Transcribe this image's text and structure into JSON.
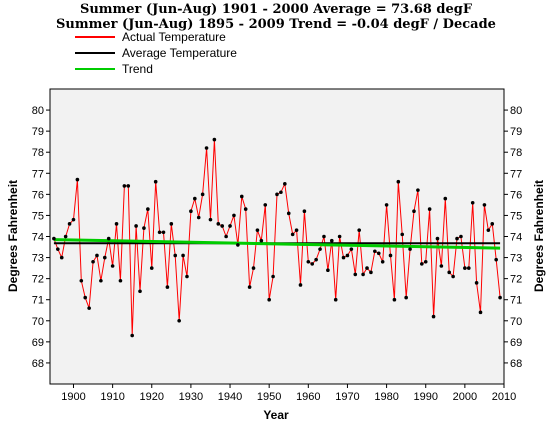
{
  "chart_data": {
    "type": "line",
    "title": "Summer (Jun-Aug) 1901 - 2000 Average = 73.68 degF",
    "subtitle": "Summer (Jun-Aug) 1895 - 2009 Trend = -0.04 degF / Decade",
    "xlabel": "Year",
    "ylabel": "Degrees Fahrenheit",
    "xlim": [
      1894,
      2010
    ],
    "ylim": [
      67,
      81
    ],
    "xticks": [
      1900,
      1910,
      1920,
      1930,
      1940,
      1950,
      1960,
      1970,
      1980,
      1990,
      2000,
      2010
    ],
    "yticks": [
      68,
      69,
      70,
      71,
      72,
      73,
      74,
      75,
      76,
      77,
      78,
      79,
      80
    ],
    "grid": false,
    "legend_position": "top-left",
    "colors": {
      "actual": "#ff0000",
      "average": "#000000",
      "trend": "#00cc00",
      "panel": "#f2f2f2"
    },
    "series": [
      {
        "name": "Actual Temperature",
        "x": [
          1895,
          1896,
          1897,
          1898,
          1899,
          1900,
          1901,
          1902,
          1903,
          1904,
          1905,
          1906,
          1907,
          1908,
          1909,
          1910,
          1911,
          1912,
          1913,
          1914,
          1915,
          1916,
          1917,
          1918,
          1919,
          1920,
          1921,
          1922,
          1923,
          1924,
          1925,
          1926,
          1927,
          1928,
          1929,
          1930,
          1931,
          1932,
          1933,
          1934,
          1935,
          1936,
          1937,
          1938,
          1939,
          1940,
          1941,
          1942,
          1943,
          1944,
          1945,
          1946,
          1947,
          1948,
          1949,
          1950,
          1951,
          1952,
          1953,
          1954,
          1955,
          1956,
          1957,
          1958,
          1959,
          1960,
          1961,
          1962,
          1963,
          1964,
          1965,
          1966,
          1967,
          1968,
          1969,
          1970,
          1971,
          1972,
          1973,
          1974,
          1975,
          1976,
          1977,
          1978,
          1979,
          1980,
          1981,
          1982,
          1983,
          1984,
          1985,
          1986,
          1987,
          1988,
          1989,
          1990,
          1991,
          1992,
          1993,
          1994,
          1995,
          1996,
          1997,
          1998,
          1999,
          2000,
          2001,
          2002,
          2003,
          2004,
          2005,
          2006,
          2007,
          2008,
          2009
        ],
        "values": [
          73.9,
          73.4,
          73.0,
          74.0,
          74.6,
          74.8,
          76.7,
          71.9,
          71.1,
          70.6,
          72.8,
          73.1,
          71.9,
          73.0,
          73.9,
          72.6,
          74.6,
          71.9,
          76.4,
          76.4,
          69.3,
          74.5,
          71.4,
          74.4,
          75.3,
          72.5,
          76.6,
          74.2,
          74.2,
          71.6,
          74.6,
          73.1,
          70.0,
          73.1,
          72.1,
          75.2,
          75.8,
          74.9,
          76.0,
          78.2,
          74.8,
          78.6,
          74.6,
          74.5,
          74.0,
          74.5,
          75.0,
          73.6,
          75.9,
          75.3,
          71.6,
          72.5,
          74.3,
          73.8,
          75.5,
          71.0,
          72.1,
          76.0,
          76.1,
          76.5,
          75.1,
          74.1,
          74.3,
          71.7,
          75.2,
          72.8,
          72.7,
          72.9,
          73.4,
          74.0,
          72.4,
          73.8,
          71.0,
          74.0,
          73.0,
          73.1,
          73.4,
          72.2,
          74.3,
          72.2,
          72.5,
          72.3,
          73.3,
          73.2,
          72.8,
          75.5,
          73.1,
          71.0,
          76.6,
          74.1,
          71.1,
          73.4,
          75.2,
          76.2,
          72.7,
          72.8,
          75.3,
          70.2,
          73.9,
          72.6,
          75.8,
          72.3,
          72.1,
          73.9,
          74.0,
          72.5,
          72.5,
          75.6,
          71.8,
          70.4,
          75.5,
          74.3,
          74.6,
          72.9,
          71.1
        ]
      },
      {
        "name": "Average Temperature",
        "x": [
          1895,
          2009
        ],
        "values": [
          73.68,
          73.68
        ]
      },
      {
        "name": "Trend",
        "x": [
          1895,
          2009
        ],
        "values": [
          73.85,
          73.45
        ]
      }
    ]
  }
}
